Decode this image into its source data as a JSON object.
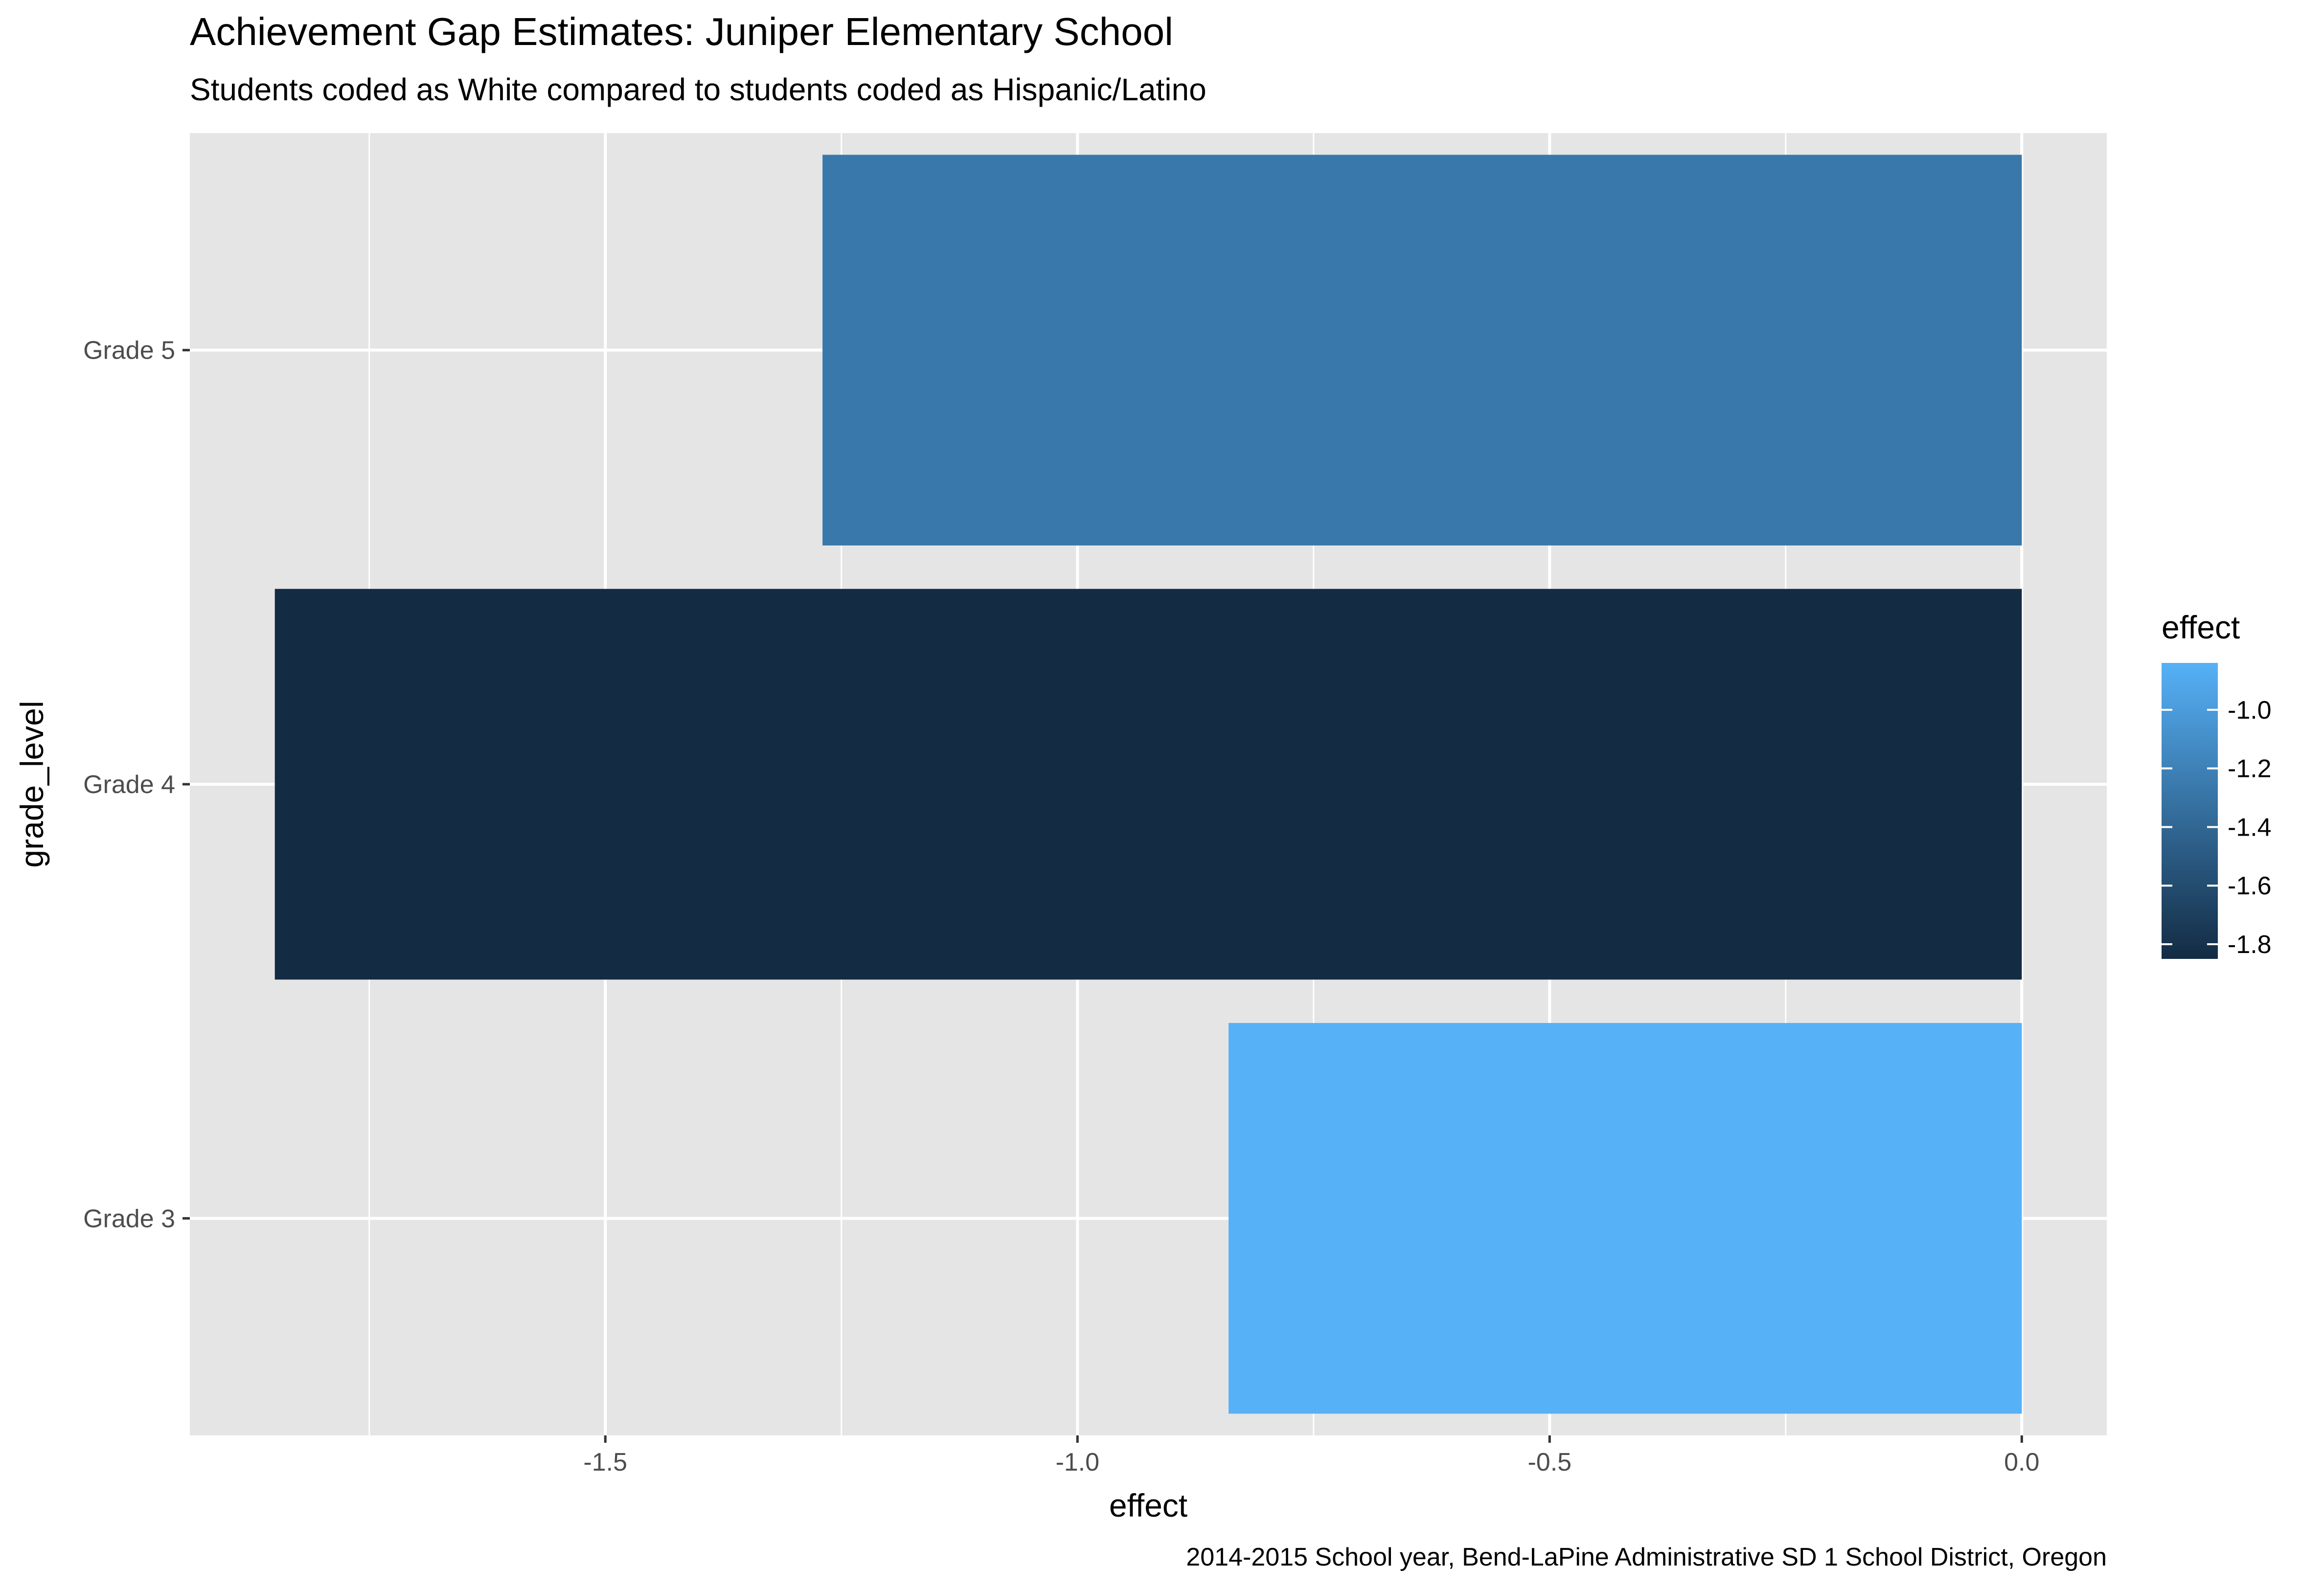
{
  "chart_data": {
    "type": "bar",
    "orientation": "horizontal",
    "title": "Achievement Gap Estimates: Juniper Elementary School",
    "subtitle": "Students coded as White compared to students coded as Hispanic/Latino",
    "caption": "2014-2015 School year, Bend-LaPine Administrative SD 1 School District, Oregon",
    "xlabel": "effect",
    "ylabel": "grade_level",
    "categories": [
      "Grade 3",
      "Grade 4",
      "Grade 5"
    ],
    "values": [
      -0.84,
      -1.85,
      -1.27
    ],
    "xlim": [
      -1.94,
      0.09
    ],
    "x_ticks": [
      -1.5,
      -1.0,
      -0.5,
      0.0
    ],
    "x_tick_labels": [
      "-1.5",
      "-1.0",
      "-0.5",
      "0.0"
    ],
    "grid": true,
    "legend": {
      "title": "effect",
      "placement": "right",
      "type": "colorbar",
      "range": [
        -1.85,
        -0.84
      ],
      "ticks": [
        -1.0,
        -1.2,
        -1.4,
        -1.6,
        -1.8
      ],
      "tick_labels": [
        "-1.0",
        "-1.2",
        "-1.4",
        "-1.6",
        "-1.8"
      ],
      "low_color": "#132B43",
      "high_color": "#56B1F7"
    },
    "colors": {
      "panel_background": "#E5E5E5",
      "grid": "#FFFFFF"
    }
  }
}
